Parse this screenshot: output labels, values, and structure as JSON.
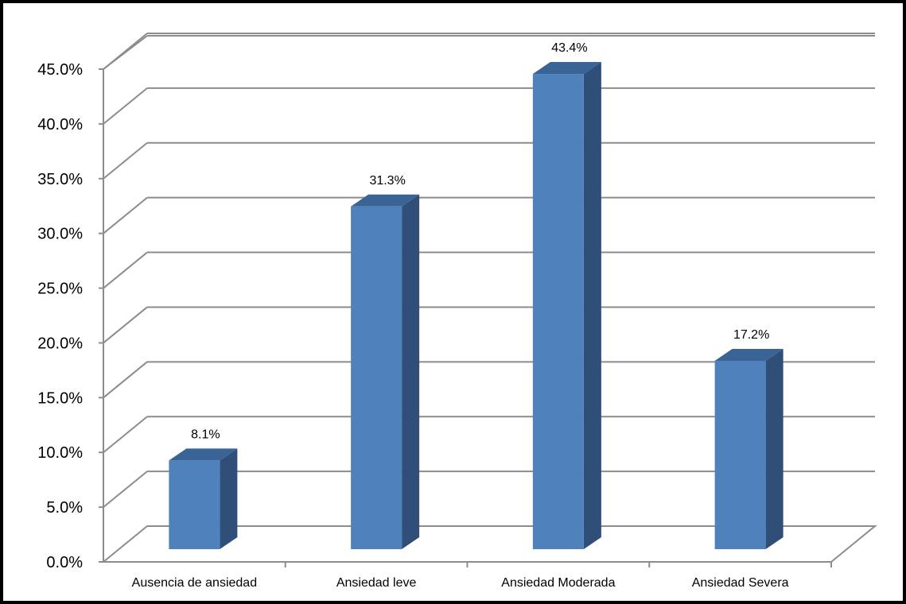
{
  "chart_data": {
    "type": "bar",
    "categories": [
      "Ausencia de ansiedad",
      "Ansiedad leve",
      "Ansiedad Moderada",
      "Ansiedad Severa"
    ],
    "values": [
      8.1,
      31.3,
      43.4,
      17.2
    ],
    "data_labels": [
      "8.1%",
      "31.3%",
      "43.4%",
      "17.2%"
    ],
    "y_ticks": [
      0,
      5,
      10,
      15,
      20,
      25,
      30,
      35,
      40,
      45
    ],
    "y_tick_labels": [
      "0.0%",
      "5.0%",
      "10.0%",
      "15.0%",
      "20.0%",
      "25.0%",
      "30.0%",
      "35.0%",
      "40.0%",
      "45.0%"
    ],
    "ylim": [
      0,
      45
    ],
    "title": "",
    "xlabel": "",
    "ylabel": "",
    "grid": true,
    "legend": "none",
    "style": "3d-column",
    "colors": {
      "bar_front": "#4f81bd",
      "bar_side": "#2f4f79",
      "bar_top": "#3b6496",
      "grid": "#8c8c8c",
      "border": "#000000"
    }
  }
}
